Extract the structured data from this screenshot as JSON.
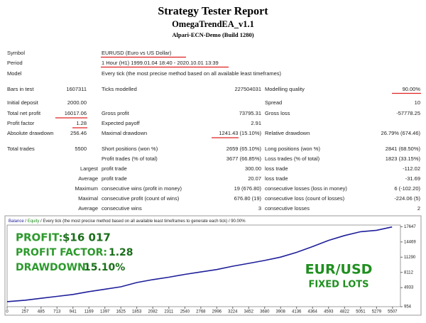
{
  "header": {
    "title": "Strategy Tester Report",
    "expert": "OmegaTrendEA_v1.1",
    "server": "Alpari-ECN-Demo (Build 1280)"
  },
  "report": {
    "rows": [
      [
        "Symbol",
        null,
        "EURUSD (Euro vs US Dollar)",
        null,
        null,
        null
      ],
      [
        "Period",
        null,
        "1 Hour (H1) 1999.01.04 18:40 - 2020.10.01 13:39",
        null,
        null,
        null
      ],
      [
        "Model",
        null,
        "Every tick (the most precise method based on all available least timeframes)",
        null,
        null,
        null
      ],
      [
        "Bars in test",
        "1607311",
        "Ticks modelled",
        "227504031",
        "Modelling quality",
        "90.00%"
      ],
      [
        "Initial deposit",
        "2000.00",
        null,
        null,
        "Spread",
        "10"
      ],
      [
        "Total net profit",
        "16017.06",
        "Gross profit",
        "73795.31",
        "Gross loss",
        "-57778.25"
      ],
      [
        "Profit factor",
        "1.28",
        "Expected payoff",
        "2.91",
        null,
        null
      ],
      [
        "Absolute drawdown",
        "256.46",
        "Maximal drawdown",
        "1241.43 (15.10%)",
        "Relative drawdown",
        "26.79% (674.46)"
      ],
      [
        "Total trades",
        "5500",
        "Short positions (won %)",
        "2659 (65.10%)",
        "Long positions (won %)",
        "2841 (68.50%)"
      ],
      [
        null,
        null,
        "Profit trades (% of total)",
        "3677 (66.85%)",
        "Loss trades (% of total)",
        "1823 (33.15%)"
      ],
      [
        null,
        "Largest",
        "profit trade",
        "300.00",
        "loss trade",
        "-112.02"
      ],
      [
        null,
        "Average",
        "profit trade",
        "20.07",
        "loss trade",
        "-31.69"
      ],
      [
        null,
        "Maximum",
        "consecutive wins (profit in money)",
        "19 (676.80)",
        "consecutive losses (loss in money)",
        "6 (-102.20)"
      ],
      [
        null,
        "Maximal",
        "consecutive profit (count of wins)",
        "676.80 (19)",
        "consecutive loss (count of losses)",
        "-224.06 (5)"
      ],
      [
        null,
        "Average",
        "consecutive wins",
        "3",
        "consecutive losses",
        "2"
      ]
    ]
  },
  "equity_chart": {
    "legend": [
      "Balance",
      "Equity",
      "Every tick (the most precise method based on all available least timeframes to generate each tick)",
      "90.00%"
    ],
    "xlim": [
      0,
      5620
    ],
    "ylim": [
      954,
      18000
    ],
    "xticks": [
      0,
      257,
      485,
      713,
      941,
      1169,
      1397,
      1625,
      1853,
      2082,
      2311,
      2540,
      2768,
      2996,
      3224,
      3452,
      3680,
      3908,
      4136,
      4364,
      4593,
      4822,
      5051,
      5279,
      5507
    ],
    "yticks": [
      954,
      4933,
      8112,
      11290,
      14469,
      17647
    ],
    "x": [
      0,
      257,
      485,
      713,
      941,
      1169,
      1397,
      1625,
      1853,
      2082,
      2311,
      2540,
      2768,
      2996,
      3224,
      3452,
      3680,
      3908,
      4136,
      4364,
      4593,
      4822,
      5051,
      5279,
      5500
    ],
    "values": [
      2000,
      2300,
      2700,
      3100,
      3500,
      4100,
      4600,
      5100,
      6000,
      6600,
      7100,
      7700,
      8200,
      8700,
      9400,
      10000,
      10600,
      11300,
      12300,
      13500,
      14800,
      15800,
      16600,
      16900,
      17600
    ],
    "color": "#1e1e9a"
  },
  "overlay": {
    "profit_label": "PROFIT:",
    "profit_value": "$16 017",
    "pf_label": "PROFIT FACTOR:",
    "pf_value": "1.28",
    "dd_label": "DRAWDOWN:",
    "dd_value": "15.10%",
    "pair": "EUR/USD",
    "lots": "FIXED LOTS"
  }
}
